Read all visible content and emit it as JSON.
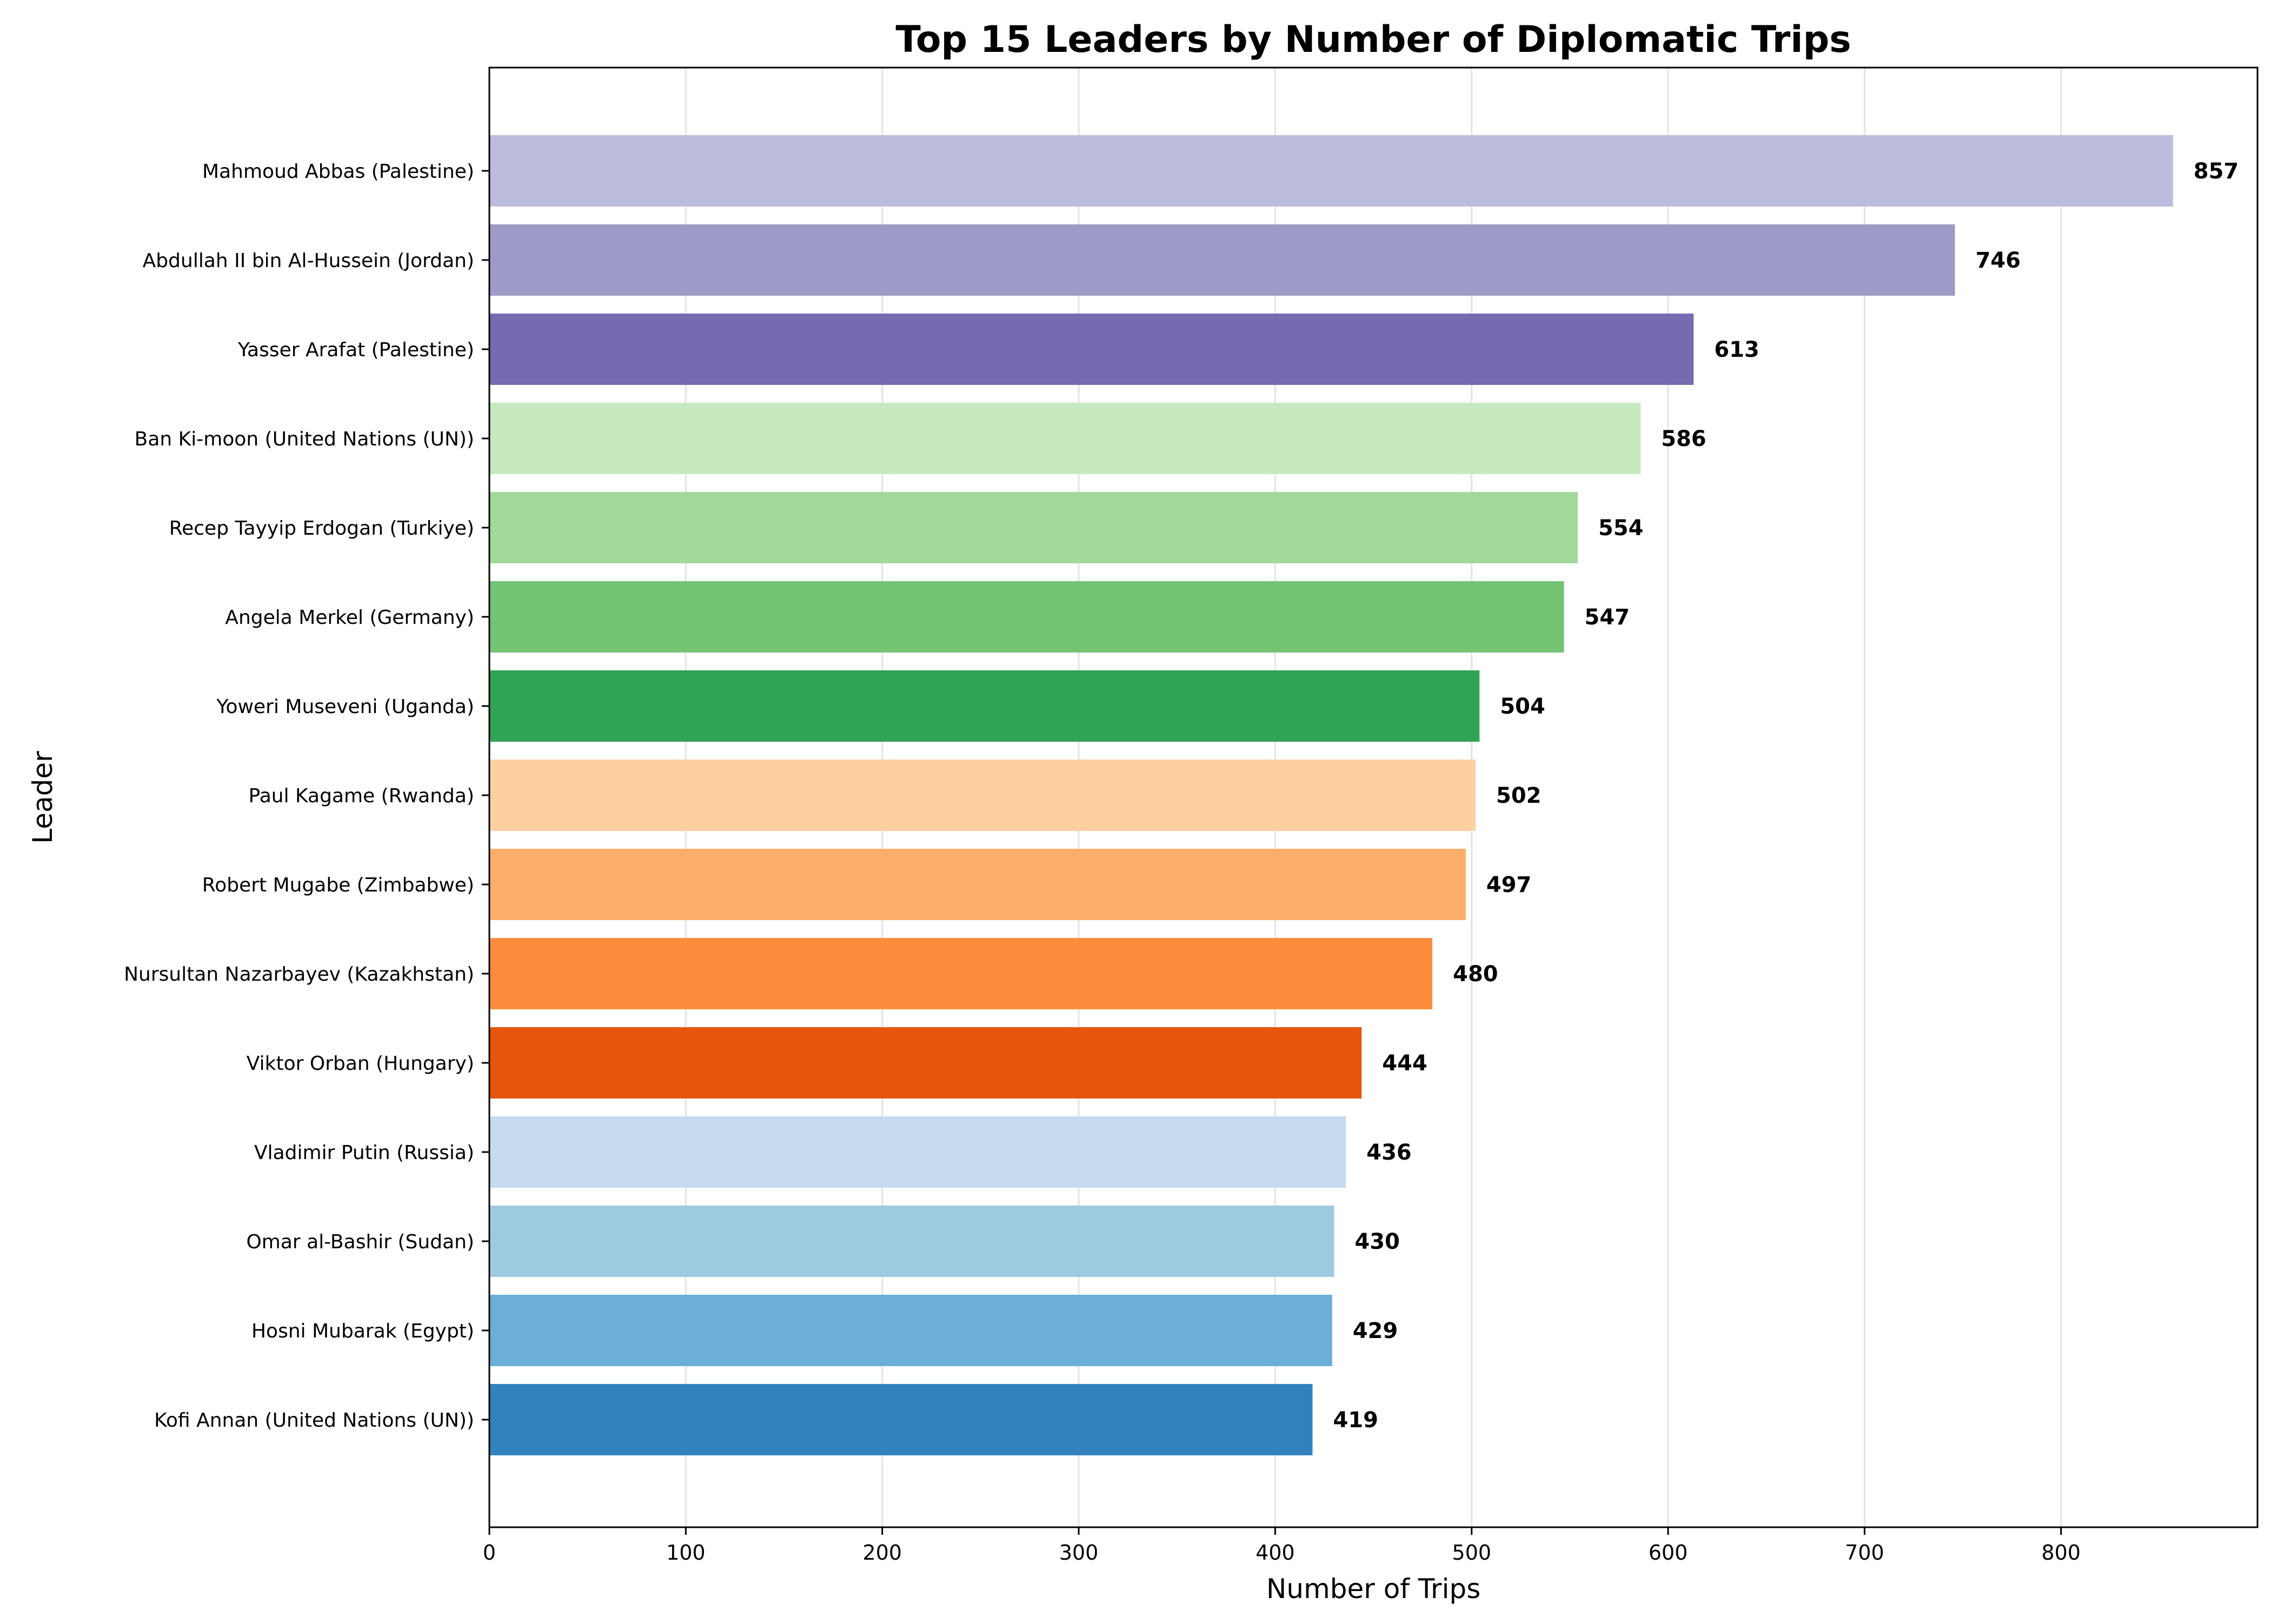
{
  "chart_data": {
    "type": "bar",
    "orientation": "horizontal",
    "title": "Top 15 Leaders by Number of Diplomatic Trips",
    "xlabel": "Number of Trips",
    "ylabel": "Leader",
    "xlim": [
      0,
      900
    ],
    "x_ticks": [
      "0",
      "100",
      "200",
      "300",
      "400",
      "500",
      "600",
      "700",
      "800"
    ],
    "grid": "vertical",
    "categories": [
      "Mahmoud Abbas (Palestine)",
      "Abdullah II bin Al-Hussein (Jordan)",
      "Yasser Arafat (Palestine)",
      "Ban Ki-moon (United Nations (UN))",
      "Recep Tayyip Erdogan (Turkiye)",
      "Angela Merkel (Germany)",
      "Yoweri Museveni (Uganda)",
      "Paul Kagame (Rwanda)",
      "Robert Mugabe (Zimbabwe)",
      "Nursultan Nazarbayev (Kazakhstan)",
      "Viktor Orban (Hungary)",
      "Vladimir Putin (Russia)",
      "Omar al-Bashir (Sudan)",
      "Hosni Mubarak (Egypt)",
      "Kofi Annan (United Nations (UN))"
    ],
    "values": [
      857,
      746,
      613,
      586,
      554,
      547,
      504,
      502,
      497,
      480,
      444,
      436,
      430,
      429,
      419
    ],
    "data_labels": [
      "857",
      "746",
      "613",
      "586",
      "554",
      "547",
      "504",
      "502",
      "497",
      "480",
      "444",
      "436",
      "430",
      "429",
      "419"
    ],
    "colors": [
      "#bcbddc",
      "#9e9ac8",
      "#756bb1",
      "#c7e9c0",
      "#a1d99b",
      "#74c476",
      "#31a354",
      "#fdd0a2",
      "#fdae6b",
      "#fd8d3c",
      "#e6550d",
      "#c6dbef",
      "#9ecae1",
      "#6baed6",
      "#3182bd"
    ]
  }
}
